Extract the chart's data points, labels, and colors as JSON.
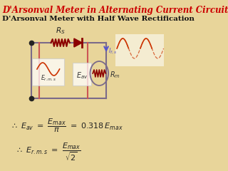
{
  "title": "D'Arsonval Meter in Alternating Current Circuits",
  "subtitle": "D'Arsonval Meter with Half Wave Rectification",
  "title_color": "#cc0000",
  "subtitle_color": "#111111",
  "bg_color": "#e8d59a",
  "wire_color": "#7a6a8a",
  "resistor_color": "#8b0000",
  "diode_color": "#8b0000",
  "ac_wave_color": "#cc3300",
  "current_color": "#5555cc",
  "formula_color": "#222222",
  "red_vert_color": "#cc5555",
  "circuit_line_color": "#7a6a8a"
}
